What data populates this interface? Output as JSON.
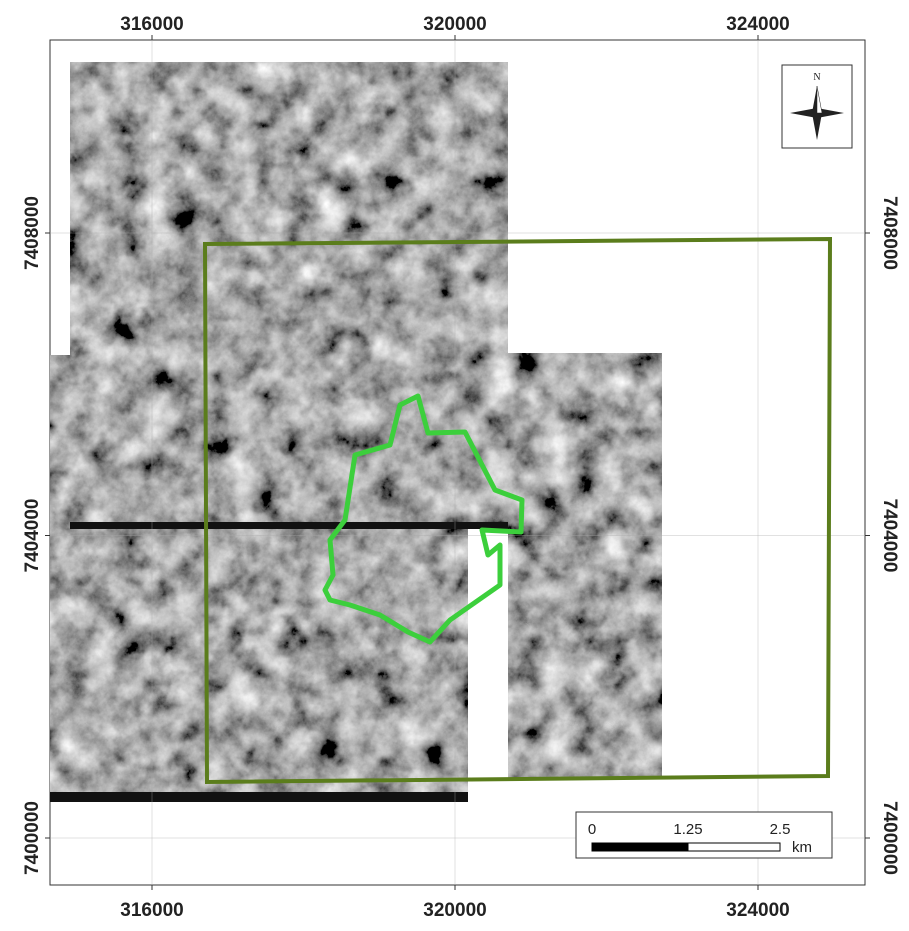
{
  "map": {
    "x_ticks": [
      316000,
      320000,
      324000
    ],
    "y_ticks": [
      7408000,
      7404000,
      7400000
    ],
    "north_label": "N",
    "scale_bar": {
      "labels": [
        "0",
        "1.25",
        "2.5"
      ],
      "unit": "km"
    }
  }
}
